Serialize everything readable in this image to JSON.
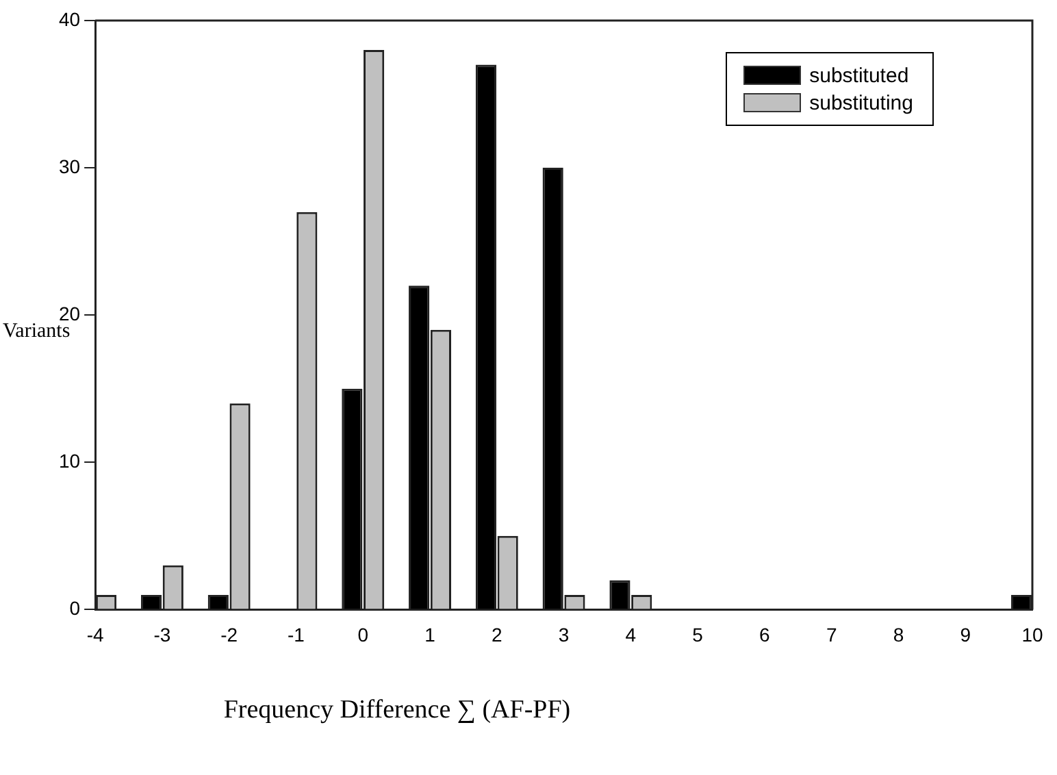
{
  "chart_data": {
    "type": "bar",
    "xlabel": "Frequency Difference ∑ (AF-PF)",
    "ylabel": "Variants",
    "categories": [
      "-4",
      "-3",
      "-2",
      "-1",
      "0",
      "1",
      "2",
      "3",
      "4",
      "5",
      "6",
      "7",
      "8",
      "9",
      "10"
    ],
    "series": [
      {
        "name": "substituted",
        "color": "#000000",
        "values": [
          0,
          1,
          1,
          0,
          15,
          22,
          37,
          30,
          2,
          0,
          0,
          0,
          0,
          0,
          1
        ]
      },
      {
        "name": "substituting",
        "color": "#c0c0c0",
        "values": [
          1,
          3,
          14,
          27,
          38,
          19,
          5,
          1,
          1,
          0,
          0,
          0,
          0,
          0,
          0
        ]
      }
    ],
    "ylim": [
      0,
      40
    ],
    "yticks": [
      0,
      10,
      20,
      30,
      40
    ],
    "grid": false,
    "legend": "top right"
  }
}
